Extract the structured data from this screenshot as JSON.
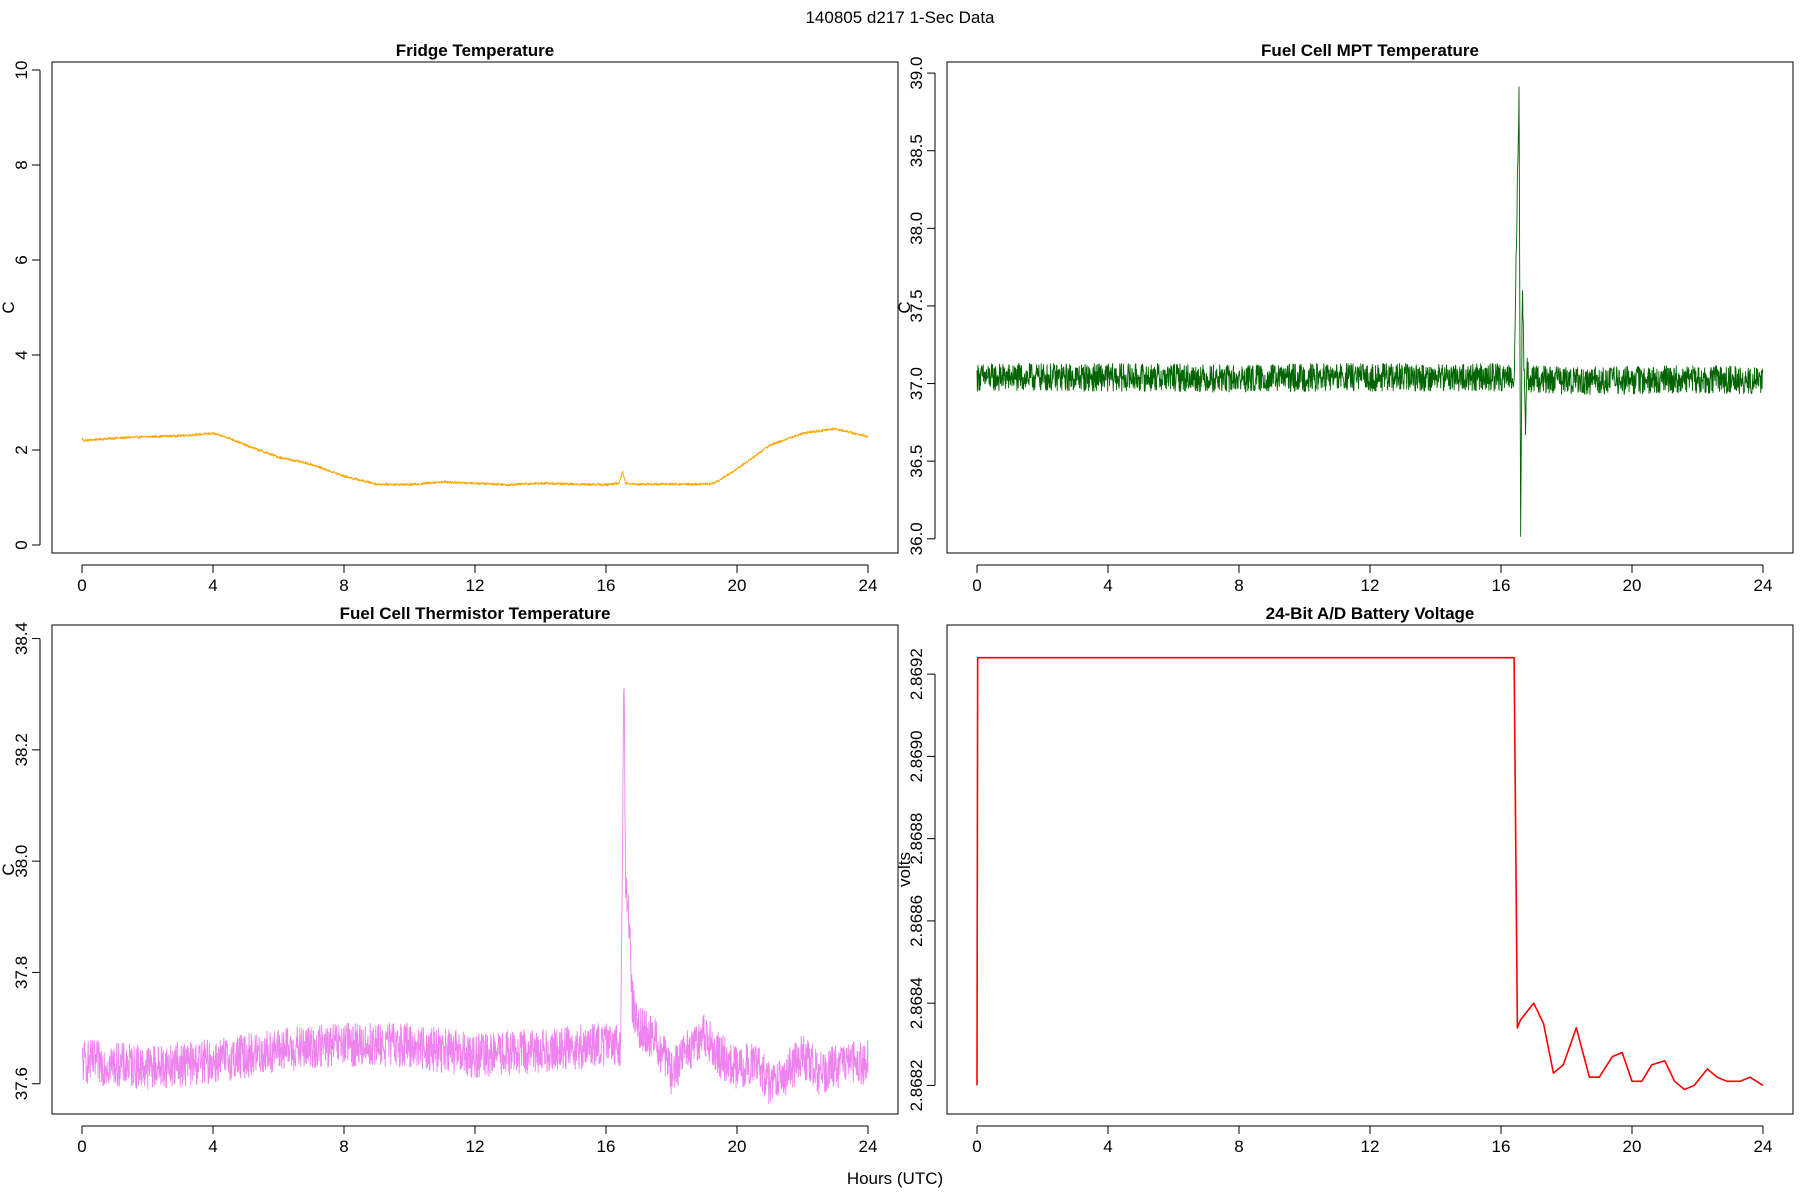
{
  "figure": {
    "title": "140805   d217   1-Sec Data",
    "shared_xlabel": "Hours (UTC)"
  },
  "chart_data": [
    {
      "type": "line",
      "title": "Fridge Temperature",
      "xlabel": "Hours (UTC)",
      "ylabel": "C",
      "color": "#FFA500",
      "xlim": [
        0,
        24
      ],
      "ylim": [
        0,
        10
      ],
      "xticks": [
        0,
        4,
        8,
        12,
        16,
        20,
        24
      ],
      "yticks": [
        0,
        2,
        4,
        6,
        8,
        10
      ],
      "ytick_labels": [
        "0",
        "2",
        "4",
        "6",
        "8",
        "10"
      ],
      "series": [
        {
          "name": "Fridge Temperature",
          "x": [
            0,
            0.05,
            1,
            2,
            3,
            4,
            4.5,
            5,
            6,
            7,
            8,
            9,
            10,
            10.5,
            11,
            12,
            13,
            14,
            15,
            16,
            16.4,
            16.5,
            16.6,
            17,
            18,
            19,
            19.3,
            20,
            21,
            22,
            23,
            24
          ],
          "y": [
            2.25,
            2.2,
            2.25,
            2.28,
            2.3,
            2.35,
            2.25,
            2.1,
            1.85,
            1.7,
            1.45,
            1.28,
            1.27,
            1.3,
            1.33,
            1.3,
            1.27,
            1.3,
            1.28,
            1.27,
            1.3,
            1.55,
            1.3,
            1.28,
            1.28,
            1.28,
            1.3,
            1.6,
            2.1,
            2.35,
            2.45,
            2.28
          ],
          "noise": 0.025
        }
      ]
    },
    {
      "type": "line",
      "title": "Fuel Cell MPT Temperature",
      "xlabel": "Hours (UTC)",
      "ylabel": "C",
      "color": "#006400",
      "xlim": [
        0,
        24
      ],
      "ylim": [
        35.96,
        39.02
      ],
      "xticks": [
        0,
        4,
        8,
        12,
        16,
        20,
        24
      ],
      "yticks": [
        36.0,
        36.5,
        37.0,
        37.5,
        38.0,
        38.5,
        39.0
      ],
      "ytick_labels": [
        "36.0",
        "36.5",
        "37.0",
        "37.5",
        "38.0",
        "38.5",
        "39.0"
      ],
      "series": [
        {
          "name": "Fuel Cell MPT Temperature",
          "x": [
            0,
            2,
            4,
            6,
            8,
            10,
            12,
            14,
            16,
            16.4,
            16.55,
            16.6,
            16.65,
            16.75,
            16.8,
            16.85,
            17,
            18,
            20,
            22,
            24
          ],
          "y": [
            37.04,
            37.04,
            37.04,
            37.04,
            37.03,
            37.04,
            37.04,
            37.04,
            37.04,
            37.04,
            38.9,
            36.05,
            37.6,
            36.7,
            37.15,
            37.0,
            37.03,
            37.02,
            37.02,
            37.03,
            37.02
          ],
          "noise": 0.09
        }
      ]
    },
    {
      "type": "line",
      "title": "Fuel Cell Thermistor Temperature",
      "xlabel": "Hours (UTC)",
      "ylabel": "C",
      "color": "#EE82EE",
      "xlim": [
        0,
        24
      ],
      "ylim": [
        37.56,
        38.41
      ],
      "xticks": [
        0,
        4,
        8,
        12,
        16,
        20,
        24
      ],
      "yticks": [
        37.6,
        37.8,
        38.0,
        38.2,
        38.4
      ],
      "ytick_labels": [
        "37.6",
        "37.8",
        "38.0",
        "38.2",
        "38.4"
      ],
      "series": [
        {
          "name": "Fuel Cell Thermistor Temperature",
          "x": [
            0,
            2,
            4,
            6,
            8,
            10,
            12,
            14,
            16,
            16.45,
            16.55,
            16.6,
            16.7,
            16.8,
            17,
            17.5,
            18,
            18.5,
            19,
            19.5,
            20,
            20.5,
            21,
            21.5,
            22,
            22.5,
            23,
            24
          ],
          "y": [
            37.64,
            37.63,
            37.64,
            37.66,
            37.67,
            37.67,
            37.65,
            37.66,
            37.67,
            37.67,
            38.35,
            37.95,
            37.9,
            37.75,
            37.7,
            37.68,
            37.62,
            37.66,
            37.69,
            37.65,
            37.63,
            37.64,
            37.6,
            37.62,
            37.65,
            37.62,
            37.63,
            37.64
          ],
          "noise": 0.04
        }
      ]
    },
    {
      "type": "line",
      "title": "24-Bit A/D Battery Voltage",
      "xlabel": "Hours (UTC)",
      "ylabel": "volts",
      "color": "#FF0000",
      "xlim": [
        0,
        24
      ],
      "ylim": [
        2.86815,
        2.8693
      ],
      "xticks": [
        0,
        4,
        8,
        12,
        16,
        20,
        24
      ],
      "yticks": [
        2.8682,
        2.8684,
        2.8686,
        2.8688,
        2.869,
        2.8692
      ],
      "ytick_labels": [
        "2.8682",
        "2.8684",
        "2.8686",
        "2.8688",
        "2.8690",
        "2.8692"
      ],
      "series": [
        {
          "name": "24-Bit A/D Battery Voltage",
          "x": [
            0,
            0.02,
            16.4,
            16.5,
            16.6,
            16.8,
            17.0,
            17.3,
            17.6,
            17.9,
            18.3,
            18.7,
            19.0,
            19.4,
            19.7,
            20.0,
            20.3,
            20.6,
            21.0,
            21.3,
            21.6,
            21.9,
            22.3,
            22.6,
            22.9,
            23.3,
            23.6,
            24
          ],
          "y": [
            2.8682,
            2.86924,
            2.86924,
            2.86834,
            2.86836,
            2.86838,
            2.8684,
            2.86835,
            2.86823,
            2.86825,
            2.86834,
            2.86822,
            2.86822,
            2.86827,
            2.86828,
            2.86821,
            2.86821,
            2.86825,
            2.86826,
            2.86821,
            2.86819,
            2.8682,
            2.86824,
            2.86822,
            2.86821,
            2.86821,
            2.86822,
            2.8682
          ],
          "noise": 0.0
        }
      ]
    }
  ]
}
